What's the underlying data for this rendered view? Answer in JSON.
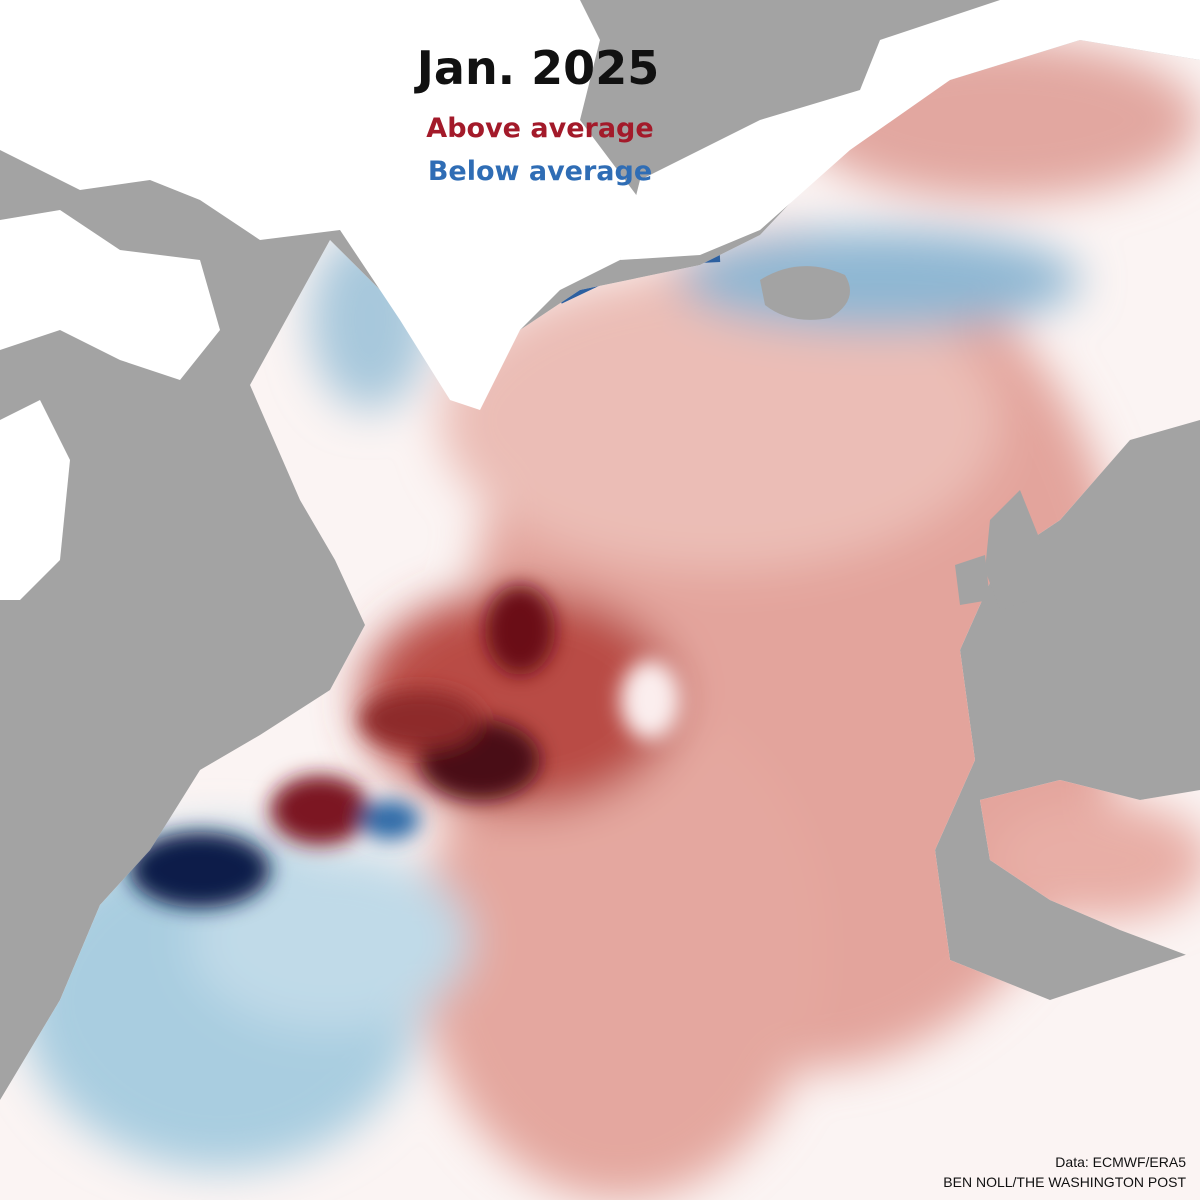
{
  "header": {
    "title": "Jan. 2025"
  },
  "legend": {
    "above": "Above average",
    "below": "Below average"
  },
  "credits": {
    "source": "Data: ECMWF/ERA5",
    "byline": "BEN NOLL/THE WASHINGTON POST"
  }
}
